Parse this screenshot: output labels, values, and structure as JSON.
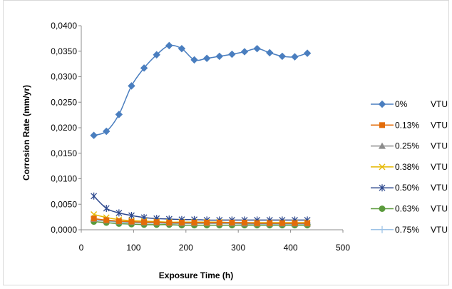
{
  "chart_data": {
    "type": "line",
    "title": "",
    "xlabel": "Exposure Time (h)",
    "ylabel": "Corrosion Rate (mm/yr)",
    "xlim": [
      0,
      500
    ],
    "ylim": [
      0,
      0.04
    ],
    "x_ticks": [
      "0",
      "100",
      "200",
      "300",
      "400",
      "500"
    ],
    "y_ticks": [
      "0,0000",
      "0,0050",
      "0,0100",
      "0,0150",
      "0,0200",
      "0,0250",
      "0,0300",
      "0,0350",
      "0,0400"
    ],
    "grid": false,
    "legend_position": "right",
    "x": [
      24,
      48,
      72,
      96,
      120,
      144,
      168,
      192,
      216,
      240,
      264,
      288,
      312,
      336,
      360,
      384,
      408,
      432
    ],
    "series": [
      {
        "name": "0%",
        "unit": "VTU",
        "color": "#4a7ebf",
        "marker": "diamond",
        "values": [
          0.0185,
          0.0193,
          0.0226,
          0.0282,
          0.0317,
          0.0343,
          0.0361,
          0.0355,
          0.0333,
          0.0336,
          0.034,
          0.0344,
          0.0349,
          0.0355,
          0.0347,
          0.034,
          0.0339,
          0.0346
        ]
      },
      {
        "name": "0.13%",
        "unit": "VTU",
        "color": "#e36c09",
        "marker": "square",
        "values": [
          0.0022,
          0.0019,
          0.0017,
          0.0016,
          0.0015,
          0.0015,
          0.0014,
          0.0014,
          0.0014,
          0.0014,
          0.0014,
          0.0014,
          0.0014,
          0.0013,
          0.0013,
          0.0013,
          0.0013,
          0.0013
        ]
      },
      {
        "name": "0.25%",
        "unit": "VTU",
        "color": "#8c8c8c",
        "marker": "triangle",
        "values": [
          0.0021,
          0.0018,
          0.0016,
          0.0015,
          0.0014,
          0.0014,
          0.0013,
          0.0013,
          0.0013,
          0.0013,
          0.0013,
          0.0013,
          0.0012,
          0.0012,
          0.0012,
          0.0012,
          0.0012,
          0.0012
        ]
      },
      {
        "name": "0.38%",
        "unit": "VTU",
        "color": "#e6b800",
        "marker": "x",
        "values": [
          0.003,
          0.0024,
          0.002,
          0.0018,
          0.0017,
          0.0016,
          0.0015,
          0.0015,
          0.0015,
          0.0015,
          0.0015,
          0.0014,
          0.0014,
          0.0014,
          0.0014,
          0.0014,
          0.0014,
          0.0014
        ]
      },
      {
        "name": "0.50%",
        "unit": "VTU",
        "color": "#2f4a8f",
        "marker": "star",
        "values": [
          0.0066,
          0.0042,
          0.0033,
          0.0028,
          0.0024,
          0.0022,
          0.0021,
          0.002,
          0.002,
          0.0019,
          0.0019,
          0.0019,
          0.0019,
          0.0019,
          0.0019,
          0.0019,
          0.0019,
          0.0019
        ]
      },
      {
        "name": "0.63%",
        "unit": "VTU",
        "color": "#5a9a3c",
        "marker": "circle",
        "values": [
          0.0016,
          0.0014,
          0.0012,
          0.0011,
          0.001,
          0.001,
          0.001,
          0.0009,
          0.0009,
          0.0009,
          0.0009,
          0.0009,
          0.0009,
          0.0009,
          0.0009,
          0.0009,
          0.0009,
          0.0009
        ]
      },
      {
        "name": "0.75%",
        "unit": "VTU",
        "color": "#9dc3e6",
        "marker": "plus",
        "values": [
          0.0019,
          0.0017,
          0.0015,
          0.0014,
          0.0013,
          0.0013,
          0.0012,
          0.0012,
          0.0012,
          0.0012,
          0.0012,
          0.0012,
          0.0011,
          0.0011,
          0.0011,
          0.0011,
          0.0011,
          0.0011
        ]
      }
    ]
  }
}
